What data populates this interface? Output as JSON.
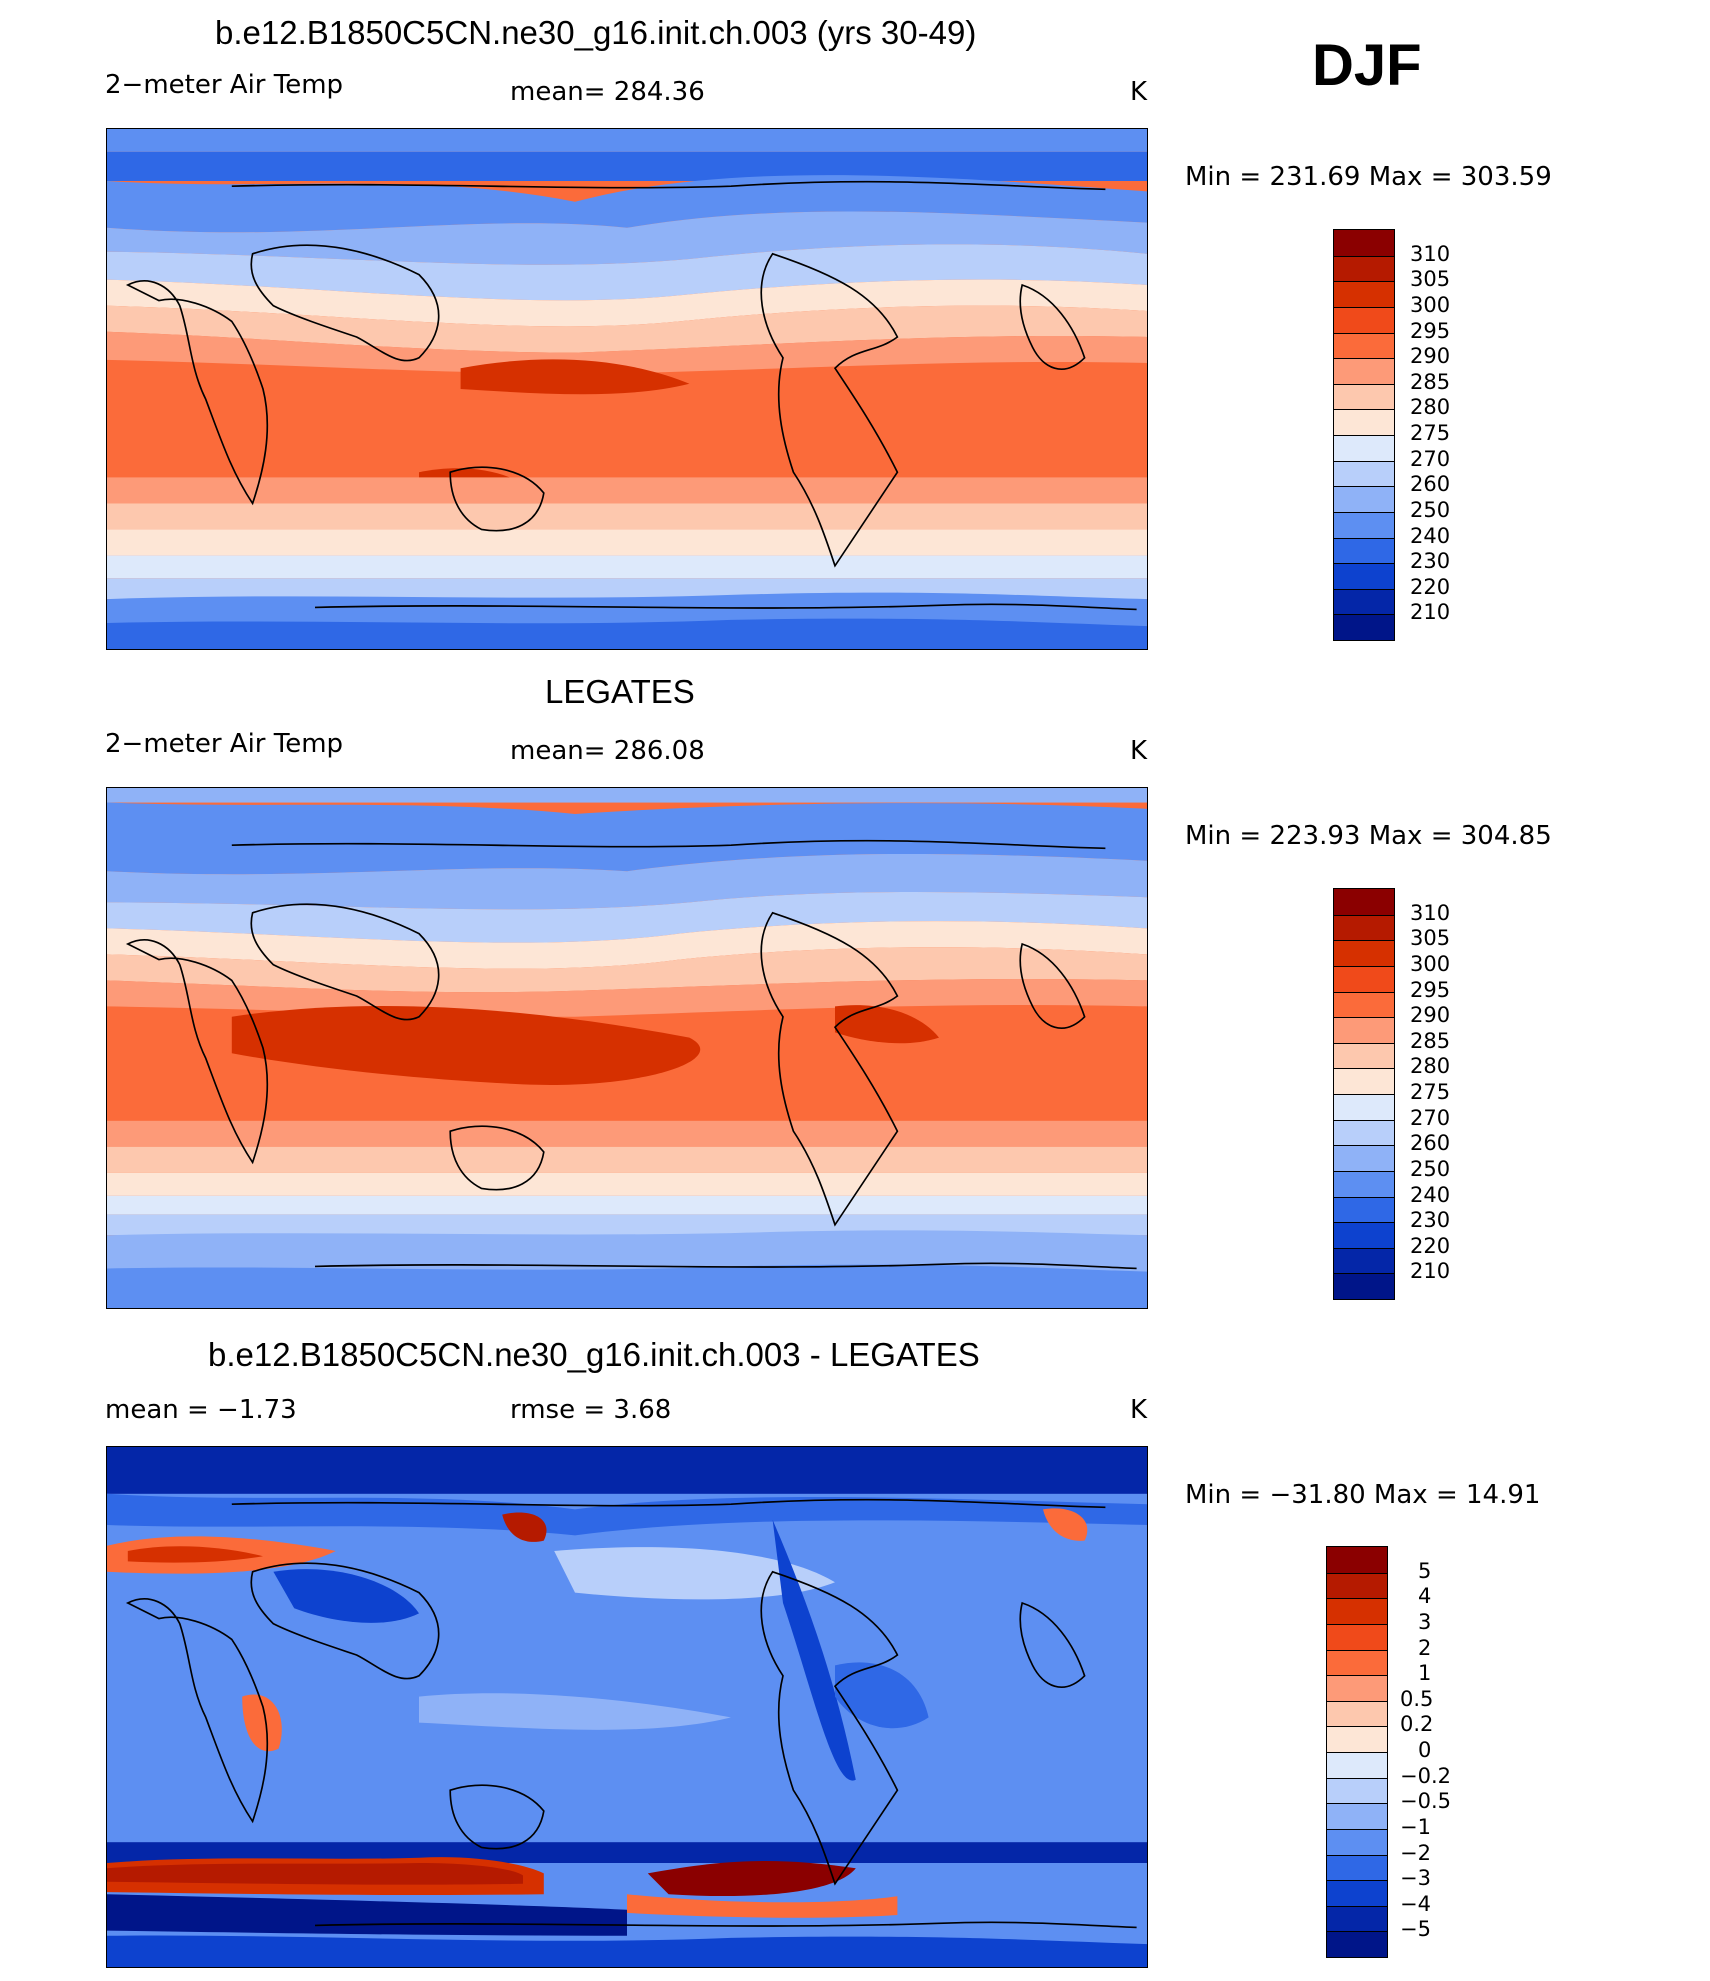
{
  "season": "DJF",
  "panels": [
    {
      "title": "b.e12.B1850C5CN.ne30_g16.init.ch.003 (yrs 30-49)",
      "left_label": "2−meter Air Temp",
      "center_label": "mean=  284.36",
      "units": "K",
      "minmax": "Min  =  231.69  Max  =  303.59",
      "colorbar": {
        "labels": [
          "310",
          "305",
          "300",
          "295",
          "290",
          "285",
          "280",
          "275",
          "270",
          "260",
          "250",
          "240",
          "230",
          "220",
          "210"
        ],
        "colors": [
          "#8b0000",
          "#b51a00",
          "#d63000",
          "#f04a1a",
          "#fb6b3a",
          "#fd9a78",
          "#fdc8ae",
          "#fde6d6",
          "#dde9fb",
          "#b8cffa",
          "#8fb2f7",
          "#5d8ff2",
          "#2f68e6",
          "#0d42cf",
          "#0426a8",
          "#001589"
        ]
      },
      "field": "model"
    },
    {
      "title": "LEGATES",
      "left_label": "2−meter Air Temp",
      "center_label": "mean=  286.08",
      "units": "K",
      "minmax": "Min  =  223.93  Max  =  304.85",
      "colorbar": {
        "labels": [
          "310",
          "305",
          "300",
          "295",
          "290",
          "285",
          "280",
          "275",
          "270",
          "260",
          "250",
          "240",
          "230",
          "220",
          "210"
        ],
        "colors": [
          "#8b0000",
          "#b51a00",
          "#d63000",
          "#f04a1a",
          "#fb6b3a",
          "#fd9a78",
          "#fdc8ae",
          "#fde6d6",
          "#dde9fb",
          "#b8cffa",
          "#8fb2f7",
          "#5d8ff2",
          "#2f68e6",
          "#0d42cf",
          "#0426a8",
          "#001589"
        ]
      },
      "field": "obs"
    },
    {
      "title": "b.e12.B1850C5CN.ne30_g16.init.ch.003 - LEGATES",
      "left_label": "mean =    −1.73",
      "center_label": "rmse =     3.68",
      "units": "K",
      "minmax": "Min  =  −31.80  Max  =    14.91",
      "colorbar": {
        "labels": [
          "5",
          "4",
          "3",
          "2",
          "1",
          "0.5",
          "0.2",
          "0",
          "−0.2",
          "−0.5",
          "−1",
          "−2",
          "−3",
          "−4",
          "−5"
        ],
        "colors": [
          "#8b0000",
          "#b51a00",
          "#d63000",
          "#f04a1a",
          "#fb6b3a",
          "#fd9a78",
          "#fdc8ae",
          "#fde6d6",
          "#dde9fb",
          "#b8cffa",
          "#8fb2f7",
          "#5d8ff2",
          "#2f68e6",
          "#0d42cf",
          "#0426a8",
          "#001589"
        ]
      },
      "field": "diff"
    }
  ]
}
